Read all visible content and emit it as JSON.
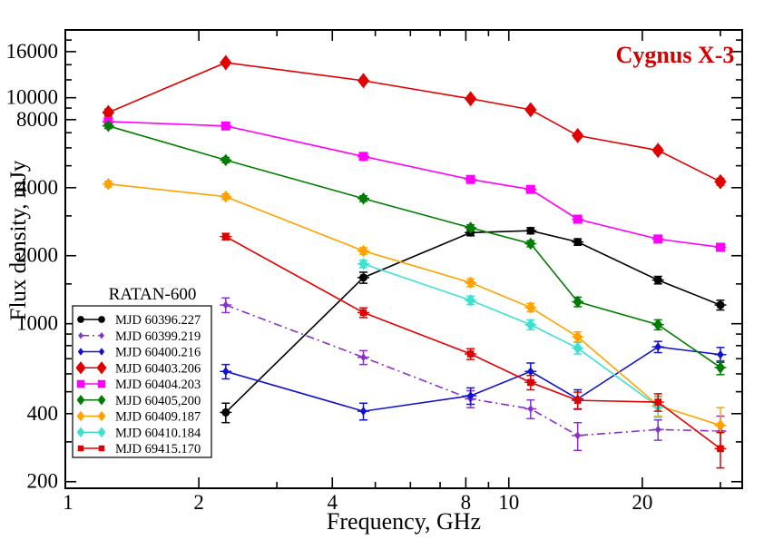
{
  "title": {
    "text": "Cygnus X-3",
    "color": "#d40000"
  },
  "legend": {
    "title": "RATAN-600",
    "entries": [
      "MJD 60396.227",
      "MJD 60399.219",
      "MJD 60400.216",
      "MJD 60403.206",
      "MJD 60404.203",
      "MJD 60405,200",
      "MJD 60409.187",
      "MJD 60410.184",
      "MJD 69415.170"
    ]
  },
  "chart_data": {
    "type": "line",
    "title": "Cygnus X-3",
    "xlabel": "Frequency, GHz",
    "ylabel": "Flux density, mJy",
    "xscale": "log",
    "yscale": "log",
    "xlim": [
      1,
      33.6
    ],
    "ylim": [
      187,
      19950
    ],
    "grid": false,
    "legend_position": "lower-left",
    "x_ticks": {
      "values": [
        1,
        2,
        4,
        8,
        10,
        20
      ],
      "labels": [
        "1",
        "2",
        "4",
        "8",
        "10",
        "20"
      ],
      "minor": [
        3,
        5,
        6,
        7,
        9,
        30
      ]
    },
    "y_ticks": {
      "values": [
        200,
        400,
        1000,
        2000,
        4000,
        8000,
        10000,
        16000
      ],
      "labels": [
        "200",
        "400",
        "1000",
        "2000",
        "4000",
        "8000",
        "10000",
        "16000"
      ],
      "minor": [
        300,
        500,
        600,
        700,
        800,
        900,
        1500,
        3000,
        5000,
        6000,
        7000,
        9000,
        12000,
        14000,
        18000
      ]
    },
    "point_format": "[frequency_GHz, flux_mJy, flux_error_mJy]",
    "series": [
      {
        "name": "MJD 60396.227",
        "color": "#000000",
        "marker": "circle",
        "size": 4.5,
        "line": "solid",
        "points": [
          [
            2.3,
            405,
            40
          ],
          [
            4.7,
            1600,
            90
          ],
          [
            8.2,
            2530,
            80
          ],
          [
            11.2,
            2580,
            80
          ],
          [
            14.3,
            2300,
            75
          ],
          [
            21.7,
            1560,
            60
          ],
          [
            30,
            1210,
            60
          ]
        ]
      },
      {
        "name": "MJD 60399.219",
        "color": "#8830cc",
        "marker": "diamond",
        "size": 3.4,
        "line": "dashdot",
        "points": [
          [
            2.3,
            1210,
            90
          ],
          [
            4.7,
            710,
            50
          ],
          [
            8.2,
            465,
            40
          ],
          [
            11.2,
            420,
            40
          ],
          [
            14.3,
            320,
            45
          ],
          [
            21.7,
            340,
            35
          ],
          [
            30,
            335,
            55
          ]
        ]
      },
      {
        "name": "MJD 60400.216",
        "color": "#1212cc",
        "marker": "diamond",
        "size": 3.8,
        "line": "solid",
        "points": [
          [
            2.3,
            615,
            45
          ],
          [
            4.7,
            410,
            35
          ],
          [
            8.2,
            480,
            40
          ],
          [
            11.2,
            615,
            55
          ],
          [
            14.3,
            465,
            45
          ],
          [
            21.7,
            790,
            45
          ],
          [
            30,
            730,
            55
          ]
        ]
      },
      {
        "name": "MJD 60403.206",
        "color": "#e00000",
        "marker": "diamond",
        "size": 6.5,
        "line": "solid",
        "points": [
          [
            1.25,
            8600,
            300
          ],
          [
            2.3,
            14300,
            350
          ],
          [
            4.7,
            11900,
            280
          ],
          [
            8.2,
            9900,
            230
          ],
          [
            11.2,
            8850,
            210
          ],
          [
            14.3,
            6800,
            180
          ],
          [
            21.7,
            5850,
            160
          ],
          [
            30,
            4250,
            150
          ]
        ]
      },
      {
        "name": "MJD 60404.203",
        "color": "#ff00ff",
        "marker": "square",
        "size": 5,
        "line": "solid",
        "points": [
          [
            1.25,
            7850,
            200
          ],
          [
            2.3,
            7500,
            190
          ],
          [
            4.7,
            5500,
            140
          ],
          [
            8.2,
            4350,
            110
          ],
          [
            11.2,
            3930,
            100
          ],
          [
            14.3,
            2900,
            90
          ],
          [
            21.7,
            2370,
            80
          ],
          [
            30,
            2180,
            80
          ]
        ]
      },
      {
        "name": "MJD 60405,200",
        "color": "#007d00",
        "marker": "diamond",
        "size": 5.2,
        "line": "solid",
        "points": [
          [
            1.25,
            7500,
            190
          ],
          [
            2.3,
            5300,
            140
          ],
          [
            4.7,
            3580,
            100
          ],
          [
            8.2,
            2660,
            80
          ],
          [
            11.2,
            2260,
            70
          ],
          [
            14.3,
            1250,
            60
          ],
          [
            21.7,
            990,
            50
          ],
          [
            30,
            640,
            45
          ]
        ]
      },
      {
        "name": "MJD 60409.187",
        "color": "#ffa200",
        "marker": "diamond",
        "size": 5.2,
        "line": "solid",
        "points": [
          [
            1.25,
            4150,
            120
          ],
          [
            2.3,
            3650,
            100
          ],
          [
            4.7,
            2100,
            70
          ],
          [
            8.2,
            1520,
            60
          ],
          [
            11.2,
            1180,
            50
          ],
          [
            14.3,
            875,
            45
          ],
          [
            21.7,
            435,
            45
          ],
          [
            30,
            355,
            70
          ]
        ]
      },
      {
        "name": "MJD 60410.184",
        "color": "#3fe0d0",
        "marker": "diamond",
        "size": 5.2,
        "line": "solid",
        "points": [
          [
            4.7,
            1840,
            70
          ],
          [
            8.2,
            1270,
            55
          ],
          [
            11.2,
            990,
            50
          ],
          [
            14.3,
            780,
            45
          ],
          [
            21.7,
            430,
            45
          ]
        ]
      },
      {
        "name": "MJD 69415.170",
        "color": "#e00000",
        "marker": "square",
        "size": 3.8,
        "line": "solid",
        "points": [
          [
            2.3,
            2430,
            80
          ],
          [
            4.7,
            1120,
            55
          ],
          [
            8.2,
            735,
            40
          ],
          [
            11.2,
            550,
            40
          ],
          [
            14.3,
            458,
            40
          ],
          [
            21.7,
            450,
            40
          ],
          [
            30,
            280,
            50
          ]
        ]
      }
    ]
  }
}
